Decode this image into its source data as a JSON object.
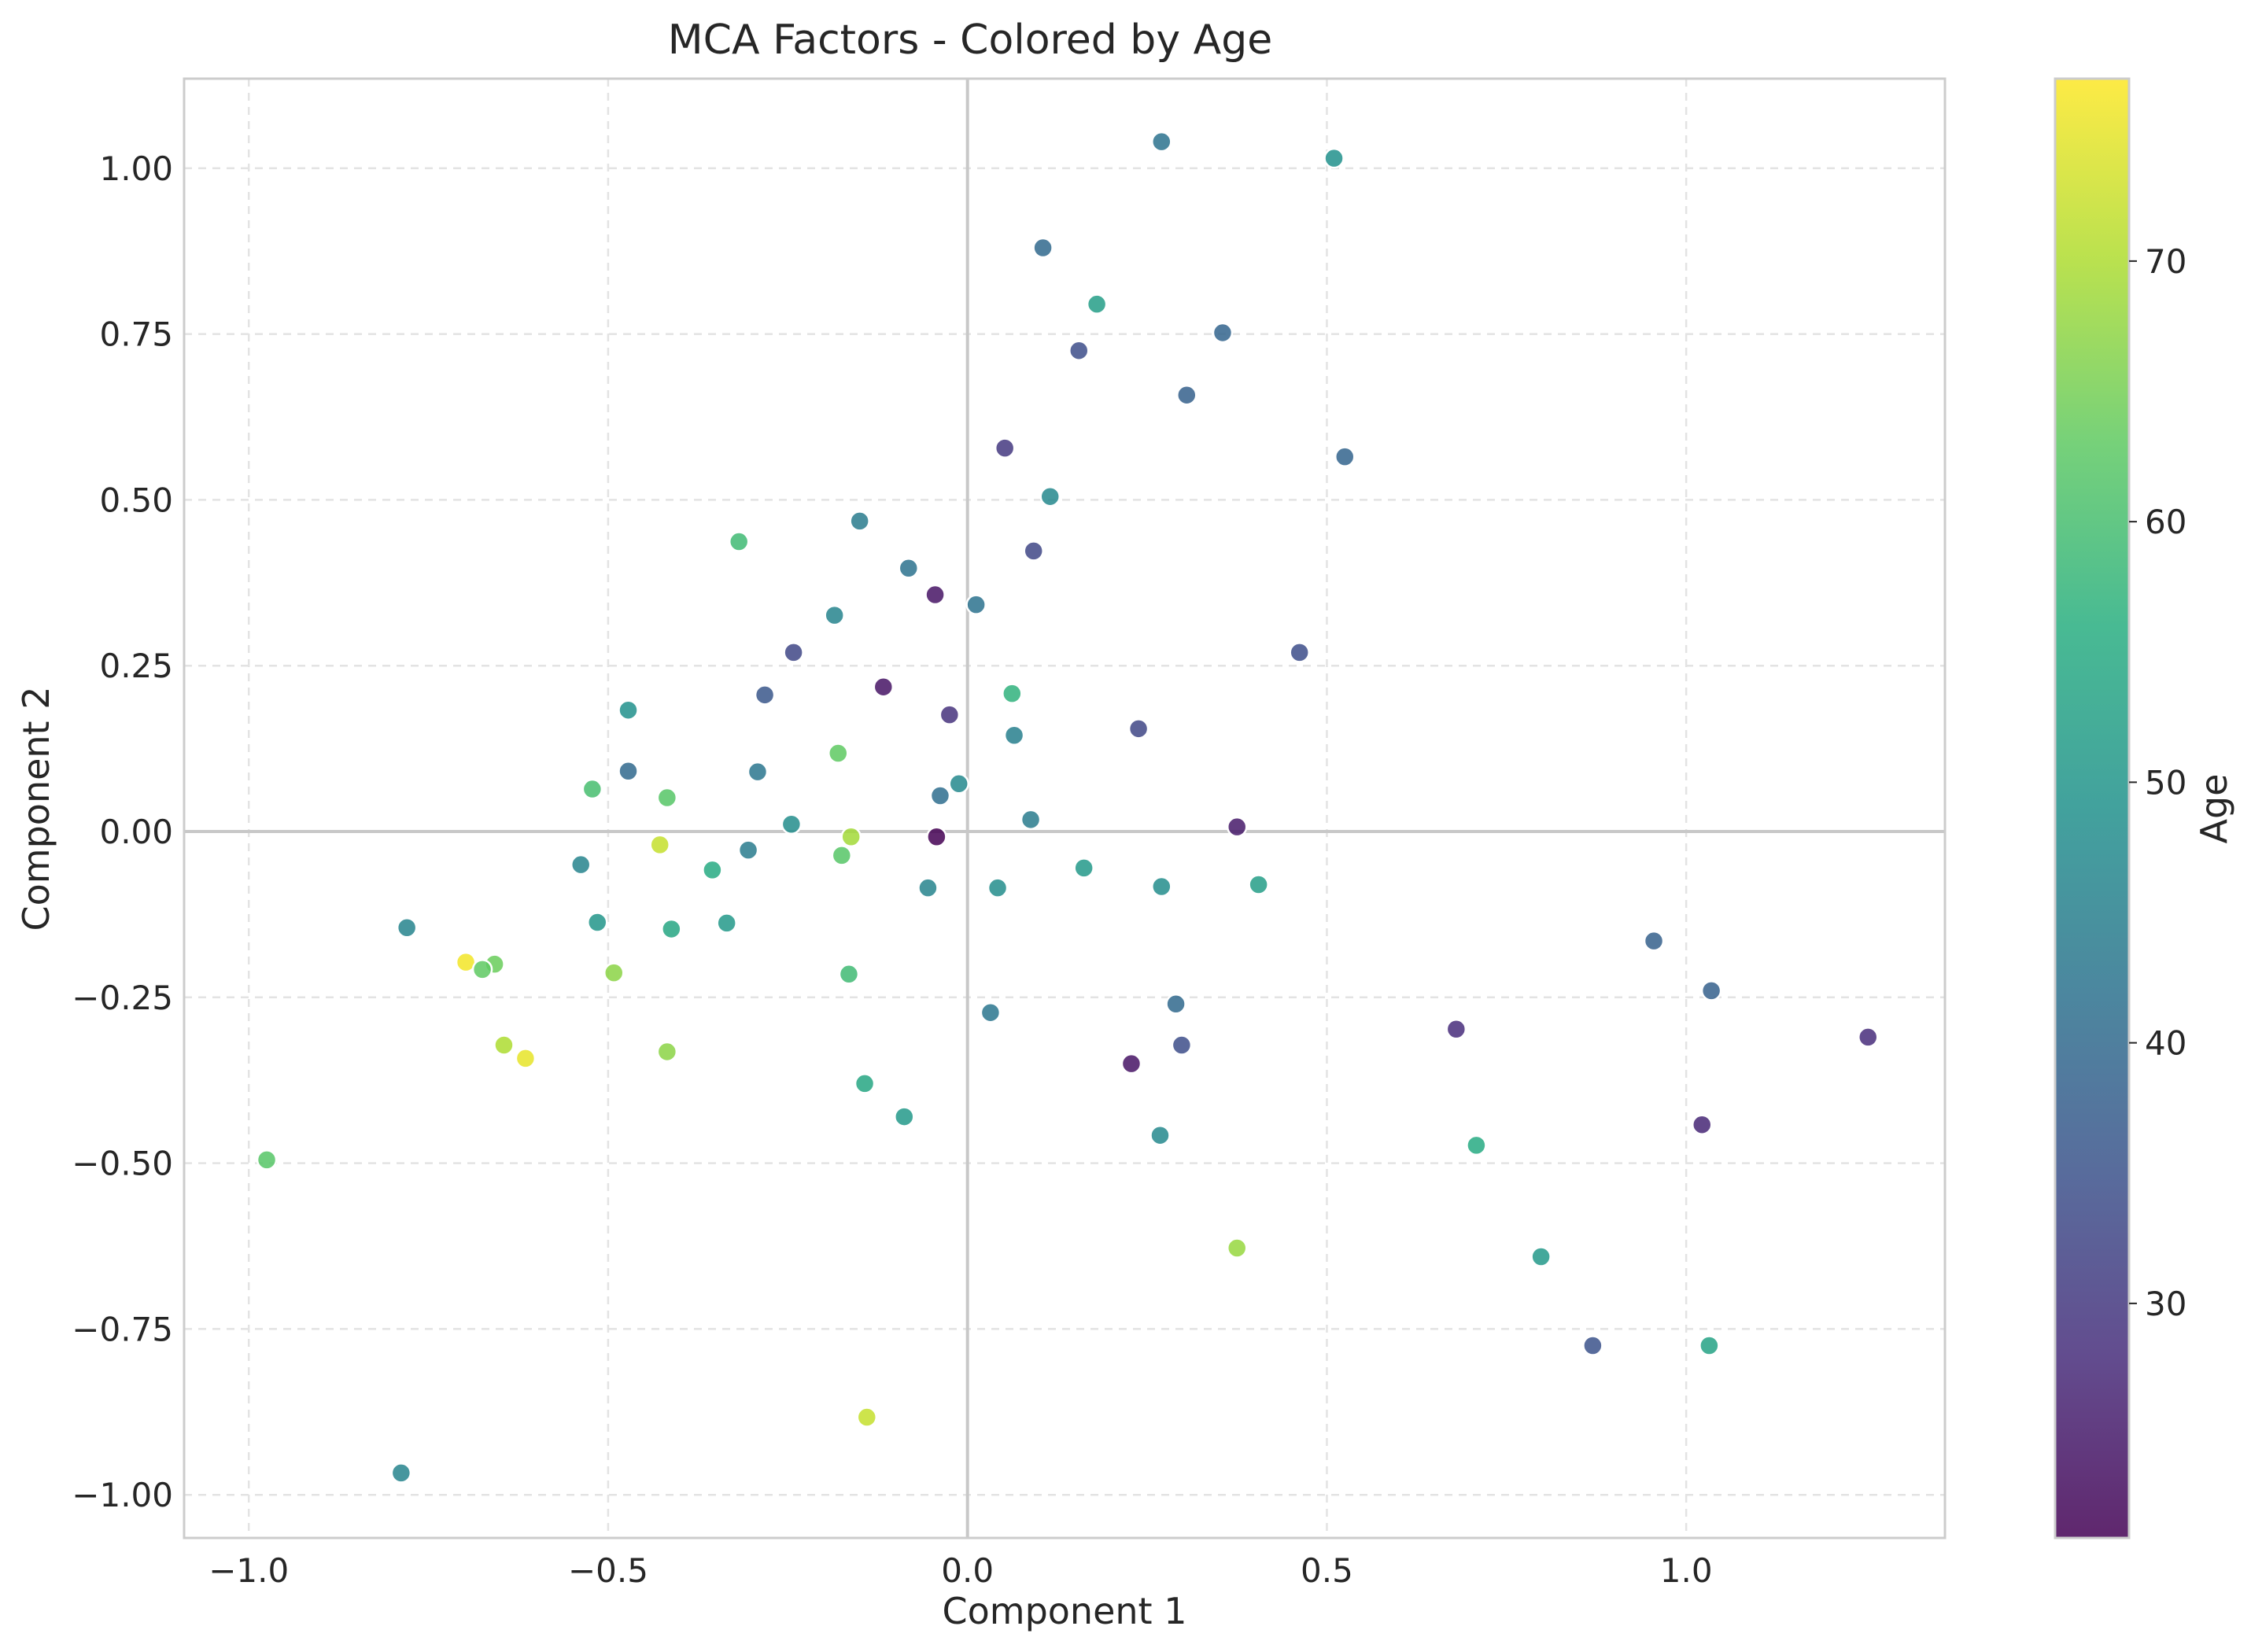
{
  "chart_data": {
    "type": "scatter",
    "title": "MCA Factors - Colored by Age",
    "xlabel": "Component 1",
    "ylabel": "Component 2",
    "xlim": [
      -1.09,
      1.36
    ],
    "ylim": [
      -1.065,
      1.135
    ],
    "xticks": [
      -1.0,
      -0.5,
      0.0,
      0.5,
      1.0
    ],
    "xtick_labels": [
      "−1.0",
      "−0.5",
      "0.0",
      "0.5",
      "1.0"
    ],
    "yticks": [
      -1.0,
      -0.75,
      -0.5,
      -0.25,
      0.0,
      0.25,
      0.5,
      0.75,
      1.0
    ],
    "ytick_labels": [
      "−1.00",
      "−0.75",
      "−0.50",
      "−0.25",
      "0.00",
      "0.25",
      "0.50",
      "0.75",
      "1.00"
    ],
    "grid": true,
    "reference_lines": {
      "x": 0,
      "y": 0
    },
    "colormap": "viridis",
    "colorbar": {
      "label": "Age",
      "range": [
        21,
        77
      ],
      "ticks": [
        30,
        40,
        50,
        60,
        70
      ],
      "tick_labels": [
        "30",
        "40",
        "50",
        "60",
        "70"
      ]
    },
    "points": [
      {
        "x": 0.27,
        "y": 1.04,
        "age": 42
      },
      {
        "x": 0.51,
        "y": 1.015,
        "age": 49
      },
      {
        "x": 0.105,
        "y": 0.88,
        "age": 40
      },
      {
        "x": 0.18,
        "y": 0.795,
        "age": 52
      },
      {
        "x": 0.355,
        "y": 0.752,
        "age": 39
      },
      {
        "x": 0.155,
        "y": 0.725,
        "age": 34
      },
      {
        "x": 0.305,
        "y": 0.658,
        "age": 38
      },
      {
        "x": 0.525,
        "y": 0.565,
        "age": 39
      },
      {
        "x": 0.052,
        "y": 0.578,
        "age": 30
      },
      {
        "x": 0.115,
        "y": 0.505,
        "age": 47
      },
      {
        "x": -0.15,
        "y": 0.468,
        "age": 44
      },
      {
        "x": -0.318,
        "y": 0.437,
        "age": 59
      },
      {
        "x": 0.092,
        "y": 0.423,
        "age": 33
      },
      {
        "x": -0.082,
        "y": 0.397,
        "age": 42
      },
      {
        "x": -0.045,
        "y": 0.357,
        "age": 24
      },
      {
        "x": 0.012,
        "y": 0.342,
        "age": 42
      },
      {
        "x": -0.185,
        "y": 0.326,
        "age": 46
      },
      {
        "x": -0.242,
        "y": 0.27,
        "age": 33
      },
      {
        "x": 0.462,
        "y": 0.27,
        "age": 34
      },
      {
        "x": -0.117,
        "y": 0.218,
        "age": 24
      },
      {
        "x": 0.062,
        "y": 0.208,
        "age": 57
      },
      {
        "x": -0.282,
        "y": 0.206,
        "age": 36
      },
      {
        "x": -0.472,
        "y": 0.183,
        "age": 49
      },
      {
        "x": -0.025,
        "y": 0.176,
        "age": 29
      },
      {
        "x": 0.238,
        "y": 0.155,
        "age": 33
      },
      {
        "x": 0.065,
        "y": 0.145,
        "age": 45
      },
      {
        "x": -0.18,
        "y": 0.118,
        "age": 63
      },
      {
        "x": -0.472,
        "y": 0.091,
        "age": 40
      },
      {
        "x": -0.292,
        "y": 0.09,
        "age": 43
      },
      {
        "x": -0.012,
        "y": 0.072,
        "age": 47
      },
      {
        "x": -0.522,
        "y": 0.064,
        "age": 60
      },
      {
        "x": -0.038,
        "y": 0.054,
        "age": 41
      },
      {
        "x": -0.418,
        "y": 0.051,
        "age": 62
      },
      {
        "x": 0.088,
        "y": 0.018,
        "age": 44
      },
      {
        "x": -0.245,
        "y": 0.011,
        "age": 48
      },
      {
        "x": 0.375,
        "y": 0.007,
        "age": 25
      },
      {
        "x": -0.043,
        "y": -0.008,
        "age": 21
      },
      {
        "x": -0.162,
        "y": -0.008,
        "age": 69
      },
      {
        "x": -0.428,
        "y": -0.02,
        "age": 72
      },
      {
        "x": -0.305,
        "y": -0.028,
        "age": 44
      },
      {
        "x": -0.175,
        "y": -0.036,
        "age": 62
      },
      {
        "x": -0.538,
        "y": -0.05,
        "age": 46
      },
      {
        "x": 0.162,
        "y": -0.055,
        "age": 51
      },
      {
        "x": -0.355,
        "y": -0.058,
        "age": 55
      },
      {
        "x": -0.055,
        "y": -0.085,
        "age": 46
      },
      {
        "x": 0.042,
        "y": -0.085,
        "age": 48
      },
      {
        "x": 0.27,
        "y": -0.083,
        "age": 48
      },
      {
        "x": 0.405,
        "y": -0.08,
        "age": 52
      },
      {
        "x": -0.515,
        "y": -0.137,
        "age": 50
      },
      {
        "x": -0.335,
        "y": -0.138,
        "age": 51
      },
      {
        "x": -0.78,
        "y": -0.145,
        "age": 46
      },
      {
        "x": -0.412,
        "y": -0.147,
        "age": 54
      },
      {
        "x": -0.698,
        "y": -0.197,
        "age": 76
      },
      {
        "x": -0.658,
        "y": -0.2,
        "age": 64
      },
      {
        "x": -0.675,
        "y": -0.208,
        "age": 63
      },
      {
        "x": -0.492,
        "y": -0.213,
        "age": 67
      },
      {
        "x": -0.165,
        "y": -0.215,
        "age": 59
      },
      {
        "x": 0.29,
        "y": -0.26,
        "age": 40
      },
      {
        "x": 0.032,
        "y": -0.273,
        "age": 43
      },
      {
        "x": 0.68,
        "y": -0.298,
        "age": 28
      },
      {
        "x": 1.253,
        "y": -0.31,
        "age": 28
      },
      {
        "x": -0.645,
        "y": -0.322,
        "age": 70
      },
      {
        "x": 0.298,
        "y": -0.322,
        "age": 34
      },
      {
        "x": -0.418,
        "y": -0.332,
        "age": 67
      },
      {
        "x": -0.615,
        "y": -0.342,
        "age": 75
      },
      {
        "x": 0.228,
        "y": -0.35,
        "age": 24
      },
      {
        "x": -0.143,
        "y": -0.38,
        "age": 54
      },
      {
        "x": -0.088,
        "y": -0.43,
        "age": 51
      },
      {
        "x": 0.268,
        "y": -0.458,
        "age": 47
      },
      {
        "x": 0.708,
        "y": -0.473,
        "age": 55
      },
      {
        "x": -0.975,
        "y": -0.495,
        "age": 62
      },
      {
        "x": 0.955,
        "y": -0.165,
        "age": 38
      },
      {
        "x": 1.035,
        "y": -0.24,
        "age": 38
      },
      {
        "x": 1.022,
        "y": -0.442,
        "age": 27
      },
      {
        "x": 0.375,
        "y": -0.628,
        "age": 68
      },
      {
        "x": 0.798,
        "y": -0.641,
        "age": 51
      },
      {
        "x": 0.87,
        "y": -0.775,
        "age": 35
      },
      {
        "x": 1.032,
        "y": -0.775,
        "age": 53
      },
      {
        "x": -0.14,
        "y": -0.883,
        "age": 72
      },
      {
        "x": -0.788,
        "y": -0.967,
        "age": 46
      }
    ]
  }
}
